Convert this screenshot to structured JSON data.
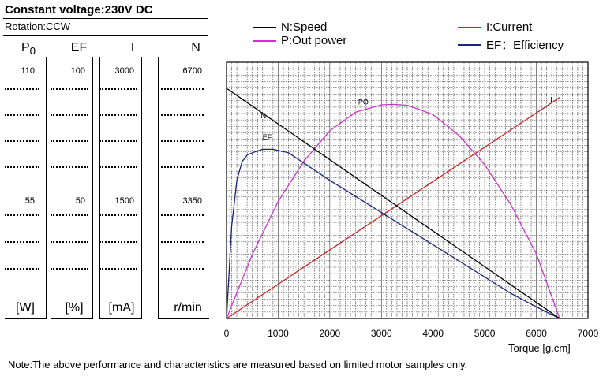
{
  "header": {
    "title": "Constant voltage:230V DC",
    "rotation": "Rotation:CCW"
  },
  "left_table": {
    "columns": [
      {
        "name": "P",
        "subscript": "0",
        "unit": "[W]",
        "top": "110",
        "mid": "55"
      },
      {
        "name": "EF",
        "subscript": "",
        "unit": "[%]",
        "top": "100",
        "mid": "50"
      },
      {
        "name": "I",
        "subscript": "",
        "unit": "[mA]",
        "top": "3000",
        "mid": "1500"
      },
      {
        "name": "N",
        "subscript": "",
        "unit": "r/min",
        "top": "6700",
        "mid": "3350"
      }
    ]
  },
  "legend": {
    "left": [
      {
        "label": "N:Speed",
        "color": "#000000"
      },
      {
        "label": "P:Out power",
        "color": "#cc33cc"
      }
    ],
    "right": [
      {
        "label": "I:Current",
        "color": "#cc2222"
      },
      {
        "label": "EF：Efficiency",
        "color": "#1a237e"
      }
    ]
  },
  "chart_data": {
    "type": "line",
    "xlabel": "Torque [g.cm]",
    "xlim": [
      0,
      7000
    ],
    "x_ticks": [
      "0",
      "1000",
      "2000",
      "3000",
      "4000",
      "5000",
      "6000",
      "7000"
    ],
    "curve_labels": {
      "N": "N",
      "PO": "PO",
      "EF": "EF",
      "I": "I"
    },
    "series": [
      {
        "name": "N",
        "color": "#000000",
        "scale_max": 6700,
        "x": [
          0,
          6450
        ],
        "values": [
          6700,
          0
        ]
      },
      {
        "name": "I",
        "color": "#cc2222",
        "scale_max": 3000,
        "x": [
          0,
          6450
        ],
        "values": [
          0,
          2880
        ]
      },
      {
        "name": "P",
        "color": "#cc33cc",
        "scale_max": 110,
        "x": [
          0,
          500,
          1000,
          1500,
          2000,
          2500,
          3000,
          3225,
          3500,
          4000,
          4500,
          5000,
          5500,
          6000,
          6450
        ],
        "values": [
          0,
          30.6,
          55.9,
          75.2,
          89.7,
          98.6,
          102.1,
          102.3,
          101.9,
          97.4,
          87.5,
          73.5,
          54.6,
          30.8,
          0
        ]
      },
      {
        "name": "EF",
        "color": "#1a237e",
        "scale_max": 100,
        "x": [
          0,
          100,
          200,
          300,
          400,
          500,
          700,
          900,
          1200,
          1600,
          2000,
          2500,
          3000,
          3500,
          4000,
          4500,
          5000,
          5500,
          6000,
          6450
        ],
        "values": [
          0,
          40,
          60,
          68,
          71,
          72,
          73.5,
          73.5,
          72,
          66,
          60,
          53,
          46,
          39,
          32,
          25,
          18,
          11,
          5,
          0
        ]
      }
    ]
  },
  "footer": {
    "note": "Note:The above performance and characteristics are measured based on limited motor samples only."
  }
}
